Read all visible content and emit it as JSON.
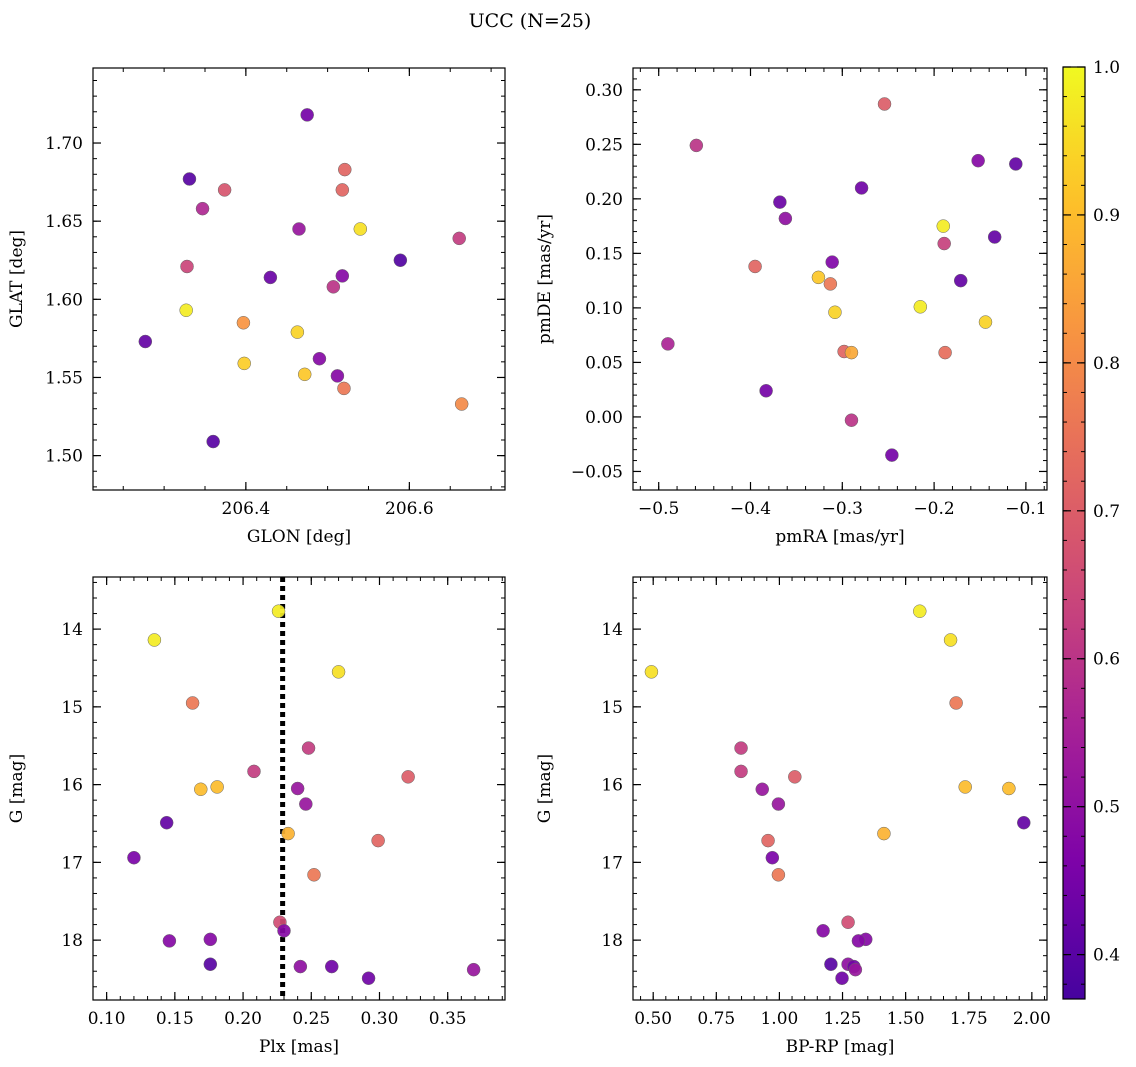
{
  "title": "UCC (N=25)",
  "colorbar": {
    "range": [
      0.37,
      1.0
    ],
    "ticks": [
      0.4,
      0.5,
      0.6,
      0.7,
      0.8,
      0.9,
      1.0
    ],
    "tick_labels": [
      "0.4",
      "0.5",
      "0.6",
      "0.7",
      "0.8",
      "0.9",
      "1.0"
    ],
    "colormap": "plasma"
  },
  "chart_data": [
    {
      "type": "scatter",
      "xlabel": "GLON [deg]",
      "ylabel": "GLAT [deg]",
      "xlim": [
        206.213,
        206.717
      ],
      "ylim": [
        1.478,
        1.748
      ],
      "xticks": [
        206.4,
        206.6
      ],
      "xtick_labels": [
        "206.4",
        "206.6"
      ],
      "yticks": [
        1.5,
        1.55,
        1.6,
        1.65,
        1.7
      ],
      "ytick_labels": [
        "1.50",
        "1.55",
        "1.60",
        "1.65",
        "1.70"
      ],
      "xminor": 0.05,
      "yminor": 0.01,
      "x": [
        206.475,
        206.331,
        206.374,
        206.347,
        206.521,
        206.518,
        206.465,
        206.54,
        206.661,
        206.328,
        206.589,
        206.43,
        206.518,
        206.507,
        206.327,
        206.397,
        206.463,
        206.277,
        206.398,
        206.49,
        206.472,
        206.512,
        206.52,
        206.664,
        206.36
      ],
      "y": [
        1.718,
        1.677,
        1.67,
        1.658,
        1.683,
        1.67,
        1.645,
        1.645,
        1.639,
        1.621,
        1.625,
        1.614,
        1.615,
        1.608,
        1.593,
        1.585,
        1.579,
        1.573,
        1.559,
        1.562,
        1.552,
        1.551,
        1.543,
        1.533,
        1.509
      ],
      "c": [
        0.45,
        0.4,
        0.68,
        0.57,
        0.72,
        0.72,
        0.52,
        0.96,
        0.62,
        0.64,
        0.39,
        0.43,
        0.48,
        0.6,
        0.98,
        0.82,
        0.94,
        0.42,
        0.93,
        0.48,
        0.92,
        0.48,
        0.76,
        0.8,
        0.4
      ]
    },
    {
      "type": "scatter",
      "xlabel": "pmRA [mas/yr]",
      "ylabel": "pmDE [mas/yr]",
      "xlim": [
        -0.528,
        -0.077
      ],
      "ylim": [
        -0.067,
        0.32
      ],
      "xticks": [
        -0.5,
        -0.4,
        -0.3,
        -0.2,
        -0.1
      ],
      "xtick_labels": [
        "−0.5",
        "−0.4",
        "−0.3",
        "−0.2",
        "−0.1"
      ],
      "yticks": [
        -0.05,
        0.0,
        0.05,
        0.1,
        0.15,
        0.2,
        0.25,
        0.3
      ],
      "ytick_labels": [
        "−0.05",
        "0.00",
        "0.05",
        "0.10",
        "0.15",
        "0.20",
        "0.25",
        "0.30"
      ],
      "xminor": 0.02,
      "yminor": 0.01,
      "x": [
        -0.254,
        -0.459,
        -0.152,
        -0.111,
        -0.368,
        -0.362,
        -0.279,
        -0.19,
        -0.134,
        -0.189,
        -0.395,
        -0.311,
        -0.171,
        -0.326,
        -0.313,
        -0.308,
        -0.215,
        -0.144,
        -0.49,
        -0.298,
        -0.29,
        -0.188,
        -0.383,
        -0.29,
        -0.246
      ],
      "y": [
        0.287,
        0.249,
        0.235,
        0.232,
        0.197,
        0.182,
        0.21,
        0.175,
        0.165,
        0.159,
        0.138,
        0.142,
        0.125,
        0.128,
        0.122,
        0.096,
        0.101,
        0.087,
        0.067,
        0.06,
        0.059,
        0.059,
        0.024,
        -0.003,
        -0.035
      ],
      "c": [
        0.7,
        0.6,
        0.48,
        0.42,
        0.43,
        0.5,
        0.44,
        0.98,
        0.42,
        0.63,
        0.72,
        0.47,
        0.42,
        0.92,
        0.76,
        0.94,
        0.98,
        0.94,
        0.56,
        0.72,
        0.86,
        0.74,
        0.45,
        0.6,
        0.45
      ]
    },
    {
      "type": "scatter",
      "xlabel": "Plx [mas]",
      "ylabel": "G [mag]",
      "xlim": [
        0.09,
        0.392
      ],
      "ylim": [
        18.77,
        13.33
      ],
      "xticks": [
        0.1,
        0.15,
        0.2,
        0.25,
        0.3,
        0.35
      ],
      "xtick_labels": [
        "0.10",
        "0.15",
        "0.20",
        "0.25",
        "0.30",
        "0.35"
      ],
      "yticks": [
        14,
        15,
        16,
        17,
        18
      ],
      "ytick_labels": [
        "14",
        "15",
        "16",
        "17",
        "18"
      ],
      "xminor": 0.01,
      "yminor": 0.2,
      "vline": 0.229,
      "x": [
        0.226,
        0.135,
        0.27,
        0.163,
        0.248,
        0.208,
        0.321,
        0.169,
        0.181,
        0.24,
        0.246,
        0.144,
        0.233,
        0.299,
        0.12,
        0.252,
        0.227,
        0.23,
        0.176,
        0.146,
        0.176,
        0.242,
        0.265,
        0.292,
        0.369
      ],
      "y": [
        13.77,
        14.14,
        14.55,
        14.95,
        15.53,
        15.83,
        15.9,
        16.06,
        16.03,
        16.05,
        16.25,
        16.49,
        16.63,
        16.72,
        16.94,
        17.16,
        17.77,
        17.88,
        17.99,
        18.01,
        18.31,
        18.34,
        18.34,
        18.49,
        18.38
      ],
      "c": [
        0.98,
        0.98,
        0.96,
        0.76,
        0.62,
        0.62,
        0.7,
        0.9,
        0.9,
        0.52,
        0.52,
        0.42,
        0.88,
        0.72,
        0.46,
        0.76,
        0.66,
        0.48,
        0.48,
        0.48,
        0.4,
        0.5,
        0.44,
        0.44,
        0.52
      ]
    },
    {
      "type": "scatter",
      "xlabel": "BP-RP [mag]",
      "ylabel": "G [mag]",
      "xlim": [
        0.42,
        2.06
      ],
      "ylim": [
        18.77,
        13.33
      ],
      "xticks": [
        0.5,
        0.75,
        1.0,
        1.25,
        1.5,
        1.75,
        2.0
      ],
      "xtick_labels": [
        "0.50",
        "0.75",
        "1.00",
        "1.25",
        "1.50",
        "1.75",
        "2.00"
      ],
      "yticks": [
        14,
        15,
        16,
        17,
        18
      ],
      "ytick_labels": [
        "14",
        "15",
        "16",
        "17",
        "18"
      ],
      "xminor": 0.05,
      "yminor": 0.2,
      "x": [
        1.556,
        1.678,
        0.493,
        1.7,
        0.848,
        0.848,
        1.061,
        0.932,
        1.736,
        1.909,
        0.996,
        1.968,
        1.414,
        0.955,
        0.972,
        0.996,
        1.272,
        1.173,
        1.342,
        1.313,
        1.204,
        1.272,
        1.295,
        1.248,
        1.301
      ],
      "y": [
        13.77,
        14.14,
        14.55,
        14.95,
        15.53,
        15.83,
        15.9,
        16.06,
        16.03,
        16.05,
        16.25,
        16.49,
        16.63,
        16.72,
        16.94,
        17.16,
        17.77,
        17.88,
        17.99,
        18.01,
        18.31,
        18.31,
        18.34,
        18.49,
        18.38
      ],
      "c": [
        0.98,
        0.96,
        0.96,
        0.76,
        0.62,
        0.62,
        0.7,
        0.52,
        0.9,
        0.9,
        0.52,
        0.42,
        0.88,
        0.72,
        0.46,
        0.76,
        0.66,
        0.48,
        0.48,
        0.48,
        0.4,
        0.5,
        0.44,
        0.44,
        0.52
      ]
    }
  ]
}
